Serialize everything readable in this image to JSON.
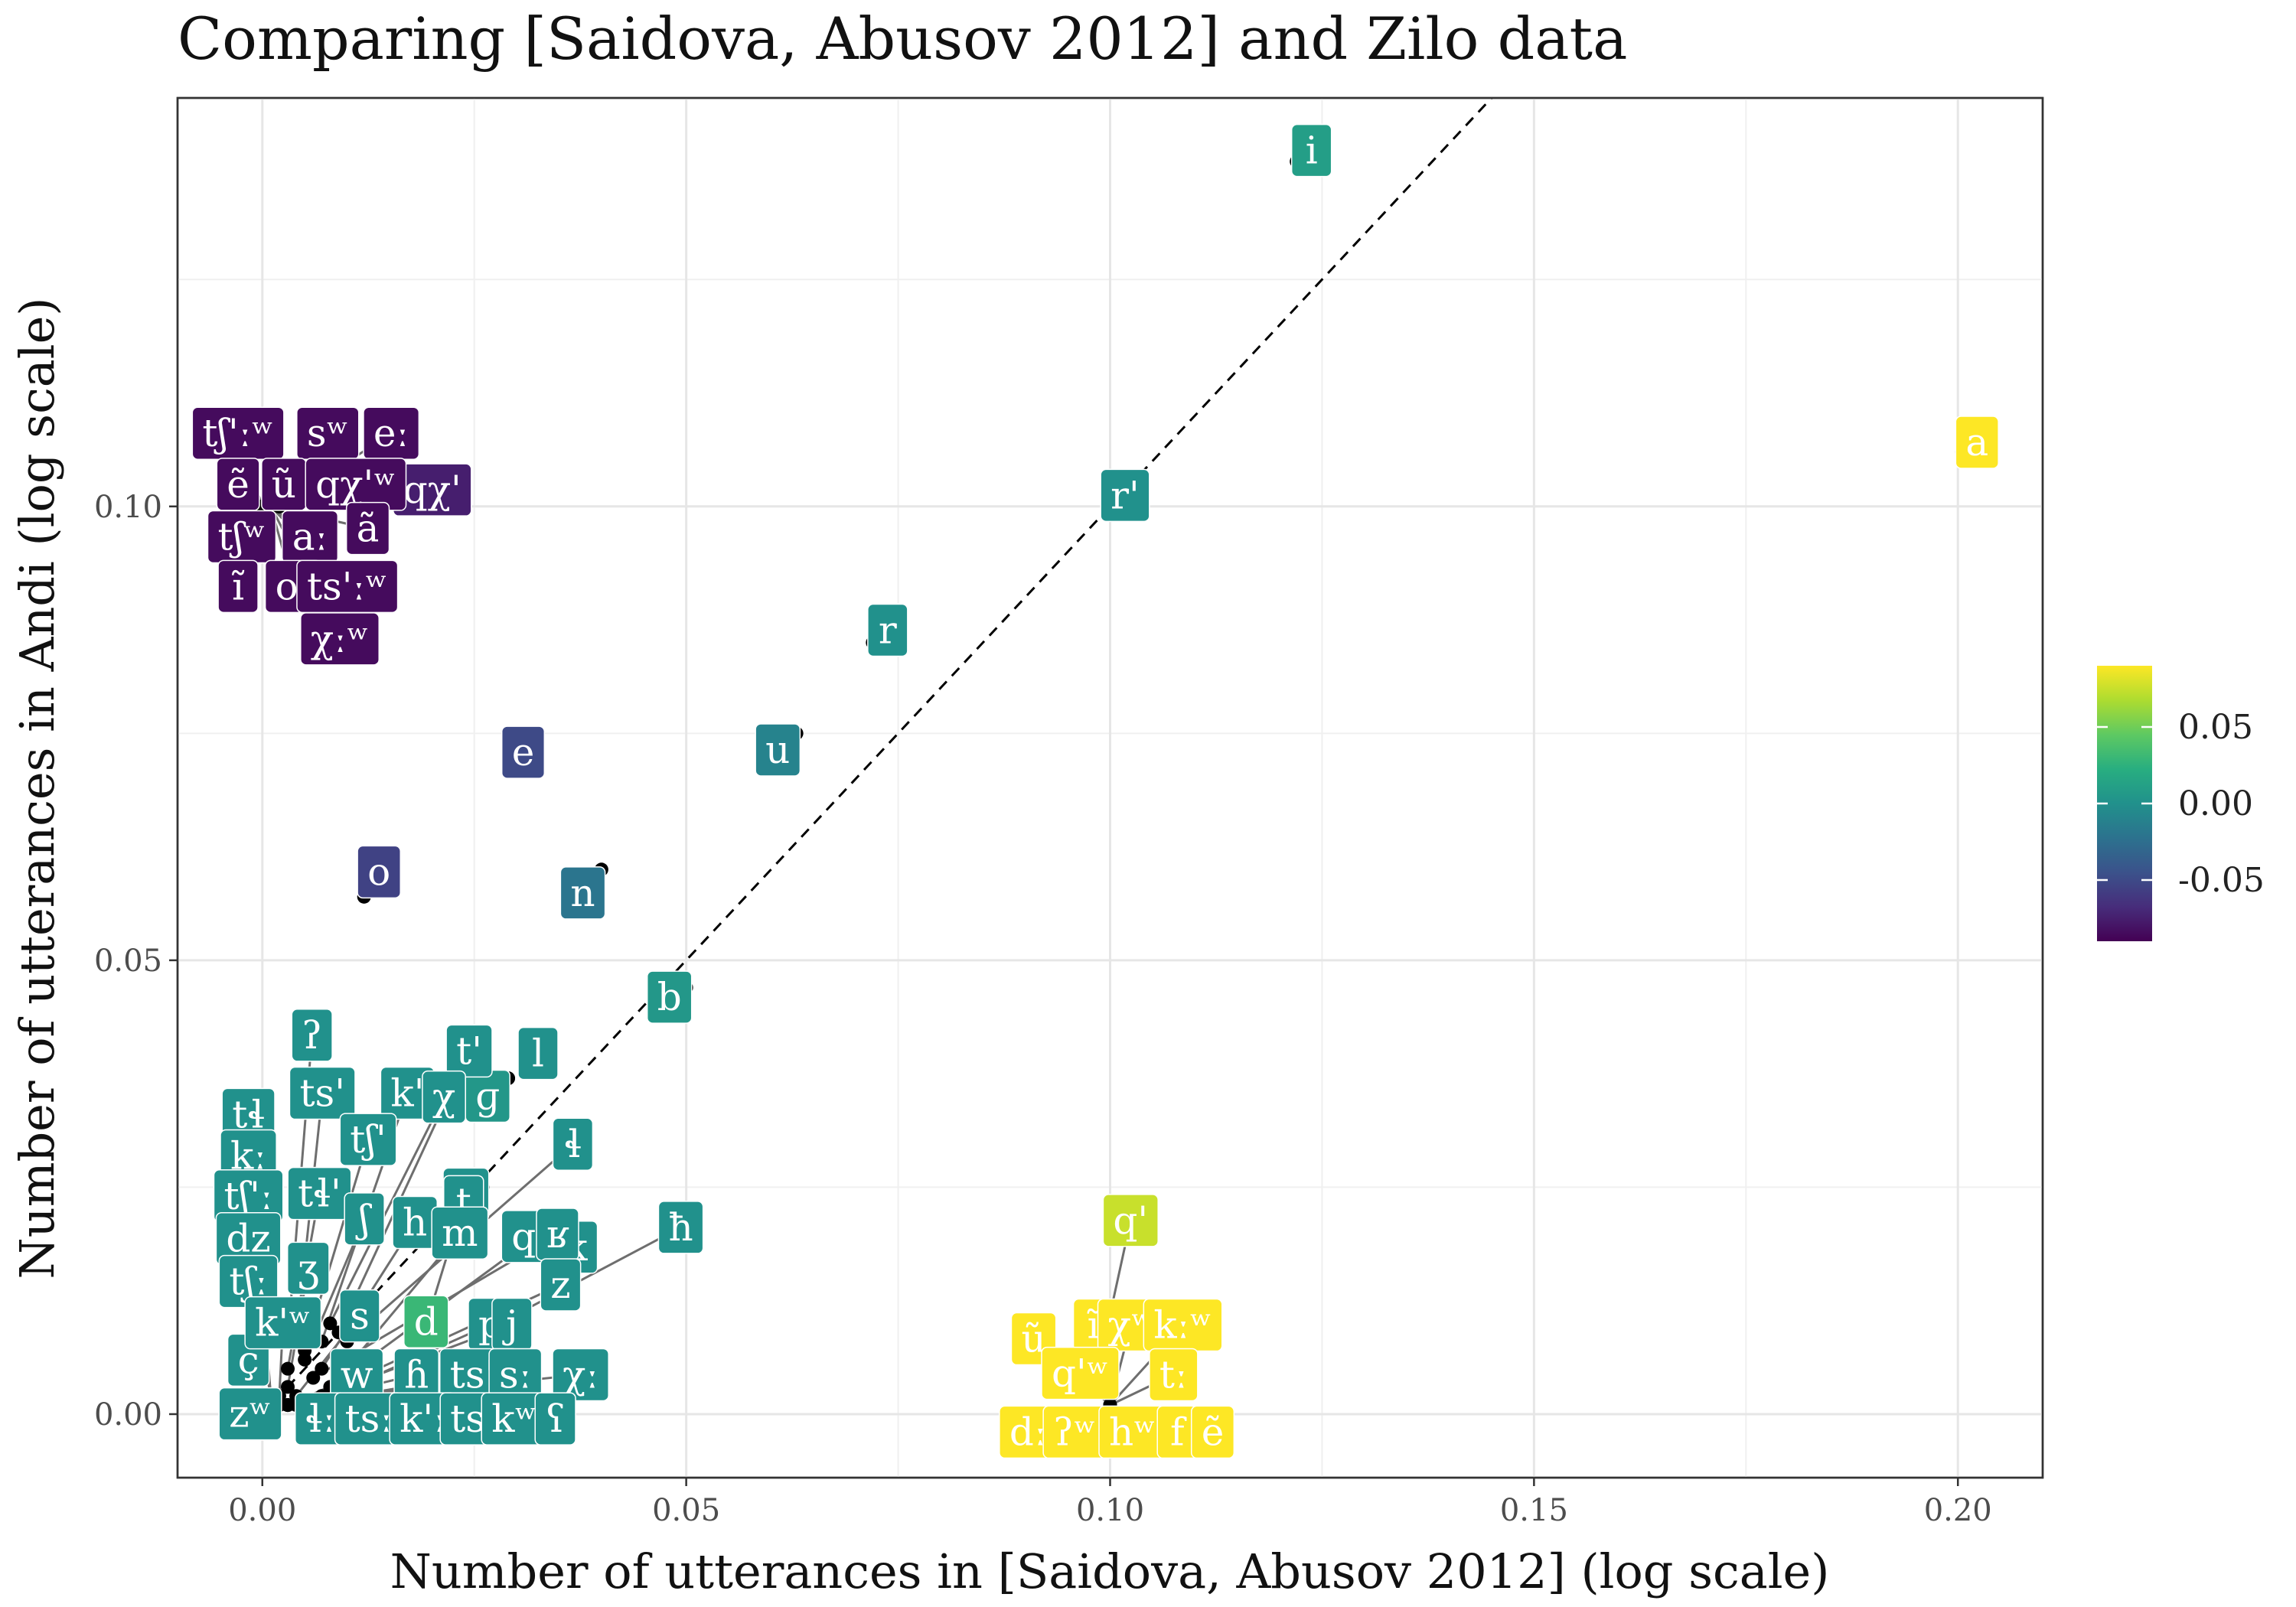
{
  "chart_data": {
    "type": "scatter",
    "title": "Comparing [Saidova, Abusov 2012] and Zilo data",
    "xlabel": "Number of utterances in [Saidova, Abusov 2012] (log scale)",
    "ylabel": "Number of utterances in Andi (log scale)",
    "xlim": [
      -0.01,
      0.21
    ],
    "ylim": [
      -0.007,
      0.145
    ],
    "x_ticks": [
      "0.00",
      "0.05",
      "0.10",
      "0.15",
      "0.20"
    ],
    "y_ticks": [
      "0.00",
      "0.05",
      "0.10"
    ],
    "grid": true,
    "reference_line": "y = x (dashed)",
    "legend": {
      "position": "right",
      "type": "colorbar",
      "ticks": [
        "0.05",
        "0.00",
        "-0.05"
      ],
      "range": [
        -0.09,
        0.09
      ]
    },
    "points": [
      {
        "label": "i",
        "x": 0.122,
        "y": 0.138,
        "d": 0.01
      },
      {
        "label": "a",
        "x": 0.2005,
        "y": 0.106,
        "d": 0.09
      },
      {
        "label": "r'",
        "x": 0.1,
        "y": 0.1,
        "d": 0.0
      },
      {
        "label": "r",
        "x": 0.072,
        "y": 0.085,
        "d": 0.0
      },
      {
        "label": "u",
        "x": 0.063,
        "y": 0.075,
        "d": -0.01
      },
      {
        "label": "e",
        "x": 0.029,
        "y": 0.072,
        "d": -0.05
      },
      {
        "label": "n",
        "x": 0.04,
        "y": 0.06,
        "d": -0.02
      },
      {
        "label": "o",
        "x": 0.012,
        "y": 0.057,
        "d": -0.055
      },
      {
        "label": "b",
        "x": 0.05,
        "y": 0.047,
        "d": 0.005
      },
      {
        "label": "l",
        "x": 0.029,
        "y": 0.037,
        "d": 0.0
      },
      {
        "label": "ɡ",
        "x": 0.029,
        "y": 0.037,
        "d": 0.005
      },
      {
        "label": "tʃ",
        "x": 0.026,
        "y": 0.025,
        "d": 0.0
      },
      {
        "label": "k",
        "x": 0.035,
        "y": 0.019,
        "d": 0.0
      },
      {
        "label": "d",
        "x": 0.018,
        "y": 0.012,
        "d": 0.03
      },
      {
        "label": "ħ",
        "x": 0.03,
        "y": 0.011,
        "d": 0.0
      },
      {
        "label": "t",
        "x": 0.02,
        "y": 0.012,
        "d": 0.0
      },
      {
        "label": "qχ'",
        "x": 0.013,
        "y": 0.1,
        "d": -0.075
      },
      {
        "label": "sʷ",
        "x": 0.002,
        "y": 0.1,
        "d": -0.085
      },
      {
        "label": "eː",
        "x": 0.002,
        "y": 0.1,
        "d": -0.085
      },
      {
        "label": "tʃ'ːʷ",
        "x": 0.0,
        "y": 0.1,
        "d": -0.085
      },
      {
        "label": "ẽ",
        "x": 0.0,
        "y": 0.1,
        "d": -0.085
      },
      {
        "label": "ũ",
        "x": 0.001,
        "y": 0.1,
        "d": -0.085
      },
      {
        "label": "qχ'ʷ",
        "x": 0.002,
        "y": 0.1,
        "d": -0.085
      },
      {
        "label": "ã",
        "x": 0.001,
        "y": 0.1,
        "d": -0.085
      },
      {
        "label": "tʃʷ",
        "x": 0.0,
        "y": 0.1,
        "d": -0.085
      },
      {
        "label": "aː",
        "x": 0.001,
        "y": 0.1,
        "d": -0.085
      },
      {
        "label": "ĩ",
        "x": 0.0,
        "y": 0.1,
        "d": -0.085
      },
      {
        "label": "oː",
        "x": 0.001,
        "y": 0.1,
        "d": -0.085
      },
      {
        "label": "ts'ːʷ",
        "x": 0.001,
        "y": 0.1,
        "d": -0.085
      },
      {
        "label": "χːʷ",
        "x": 0.001,
        "y": 0.1,
        "d": -0.085
      },
      {
        "label": "q'",
        "x": 0.1,
        "y": 0.011,
        "d": 0.075
      },
      {
        "label": "ĩ",
        "x": 0.1,
        "y": 0.001,
        "d": 0.09
      },
      {
        "label": "ũ",
        "x": 0.1,
        "y": 0.001,
        "d": 0.09
      },
      {
        "label": "χʷ",
        "x": 0.1,
        "y": 0.001,
        "d": 0.09
      },
      {
        "label": "kːʷ",
        "x": 0.1,
        "y": 0.001,
        "d": 0.09
      },
      {
        "label": "q'ʷ",
        "x": 0.1,
        "y": 0.001,
        "d": 0.09
      },
      {
        "label": "tː",
        "x": 0.1,
        "y": 0.001,
        "d": 0.09
      },
      {
        "label": "dː",
        "x": 0.1,
        "y": 0.0,
        "d": 0.09
      },
      {
        "label": "ʔʷ",
        "x": 0.1,
        "y": 0.0,
        "d": 0.09
      },
      {
        "label": "hʷ",
        "x": 0.1,
        "y": 0.0,
        "d": 0.09
      },
      {
        "label": "f",
        "x": 0.1,
        "y": 0.0,
        "d": 0.09
      },
      {
        "label": "ẽ",
        "x": 0.1,
        "y": 0.0,
        "d": 0.09
      },
      {
        "label": "tɬ",
        "x": 0.001,
        "y": 0.002,
        "d": 0.0
      },
      {
        "label": "kː",
        "x": 0.001,
        "y": 0.002,
        "d": 0.0
      },
      {
        "label": "tʃ'ː",
        "x": 0.001,
        "y": 0.002,
        "d": 0.0
      },
      {
        "label": "dz",
        "x": 0.001,
        "y": 0.002,
        "d": 0.0
      },
      {
        "label": "tʃː",
        "x": 0.001,
        "y": 0.002,
        "d": 0.0
      },
      {
        "label": "ç",
        "x": 0.001,
        "y": 0.002,
        "d": 0.0
      },
      {
        "label": "zʷ",
        "x": 0.001,
        "y": 0.002,
        "d": 0.0
      },
      {
        "label": "ʔ",
        "x": 0.003,
        "y": 0.008,
        "d": 0.0
      },
      {
        "label": "ts'",
        "x": 0.004,
        "y": 0.008,
        "d": 0.0
      },
      {
        "label": "k'",
        "x": 0.007,
        "y": 0.008,
        "d": 0.0
      },
      {
        "label": "t'",
        "x": 0.009,
        "y": 0.009,
        "d": 0.0
      },
      {
        "label": "tʃ'",
        "x": 0.005,
        "y": 0.007,
        "d": 0.0
      },
      {
        "label": "χ",
        "x": 0.008,
        "y": 0.01,
        "d": 0.0
      },
      {
        "label": "tɬ'",
        "x": 0.003,
        "y": 0.005,
        "d": 0.0
      },
      {
        "label": "ʃ",
        "x": 0.005,
        "y": 0.006,
        "d": 0.0
      },
      {
        "label": "h",
        "x": 0.007,
        "y": 0.005,
        "d": 0.0
      },
      {
        "label": "m",
        "x": 0.009,
        "y": 0.004,
        "d": 0.0
      },
      {
        "label": "qχ",
        "x": 0.008,
        "y": 0.003,
        "d": 0.0
      },
      {
        "label": "ɬ",
        "x": 0.01,
        "y": 0.008,
        "d": 0.0
      },
      {
        "label": "ʁ",
        "x": 0.006,
        "y": 0.004,
        "d": 0.0
      },
      {
        "label": "ʒ",
        "x": 0.003,
        "y": 0.003,
        "d": 0.0
      },
      {
        "label": "s",
        "x": 0.004,
        "y": 0.002,
        "d": 0.0
      },
      {
        "label": "z",
        "x": 0.009,
        "y": 0.003,
        "d": 0.0
      },
      {
        "label": "p",
        "x": 0.008,
        "y": 0.002,
        "d": 0.0
      },
      {
        "label": "j",
        "x": 0.007,
        "y": 0.002,
        "d": 0.0
      },
      {
        "label": "k'ʷ",
        "x": 0.002,
        "y": 0.002,
        "d": 0.0
      },
      {
        "label": "w",
        "x": 0.003,
        "y": 0.001,
        "d": 0.0
      },
      {
        "label": "ɦ",
        "x": 0.003,
        "y": 0.001,
        "d": 0.0
      },
      {
        "label": "ts'ː",
        "x": 0.004,
        "y": 0.001,
        "d": 0.0
      },
      {
        "label": "sː",
        "x": 0.003,
        "y": 0.001,
        "d": 0.0
      },
      {
        "label": "χː",
        "x": 0.003,
        "y": 0.001,
        "d": 0.0
      },
      {
        "label": "ɬː",
        "x": 0.002,
        "y": 0.001,
        "d": 0.0
      },
      {
        "label": "tsː",
        "x": 0.002,
        "y": 0.001,
        "d": 0.0
      },
      {
        "label": "k'ː",
        "x": 0.002,
        "y": 0.001,
        "d": 0.0
      },
      {
        "label": "ts",
        "x": 0.002,
        "y": 0.001,
        "d": 0.0
      },
      {
        "label": "kʷ",
        "x": 0.002,
        "y": 0.001,
        "d": 0.0
      },
      {
        "label": "ʕ",
        "x": 0.002,
        "y": 0.001,
        "d": 0.0
      }
    ]
  }
}
